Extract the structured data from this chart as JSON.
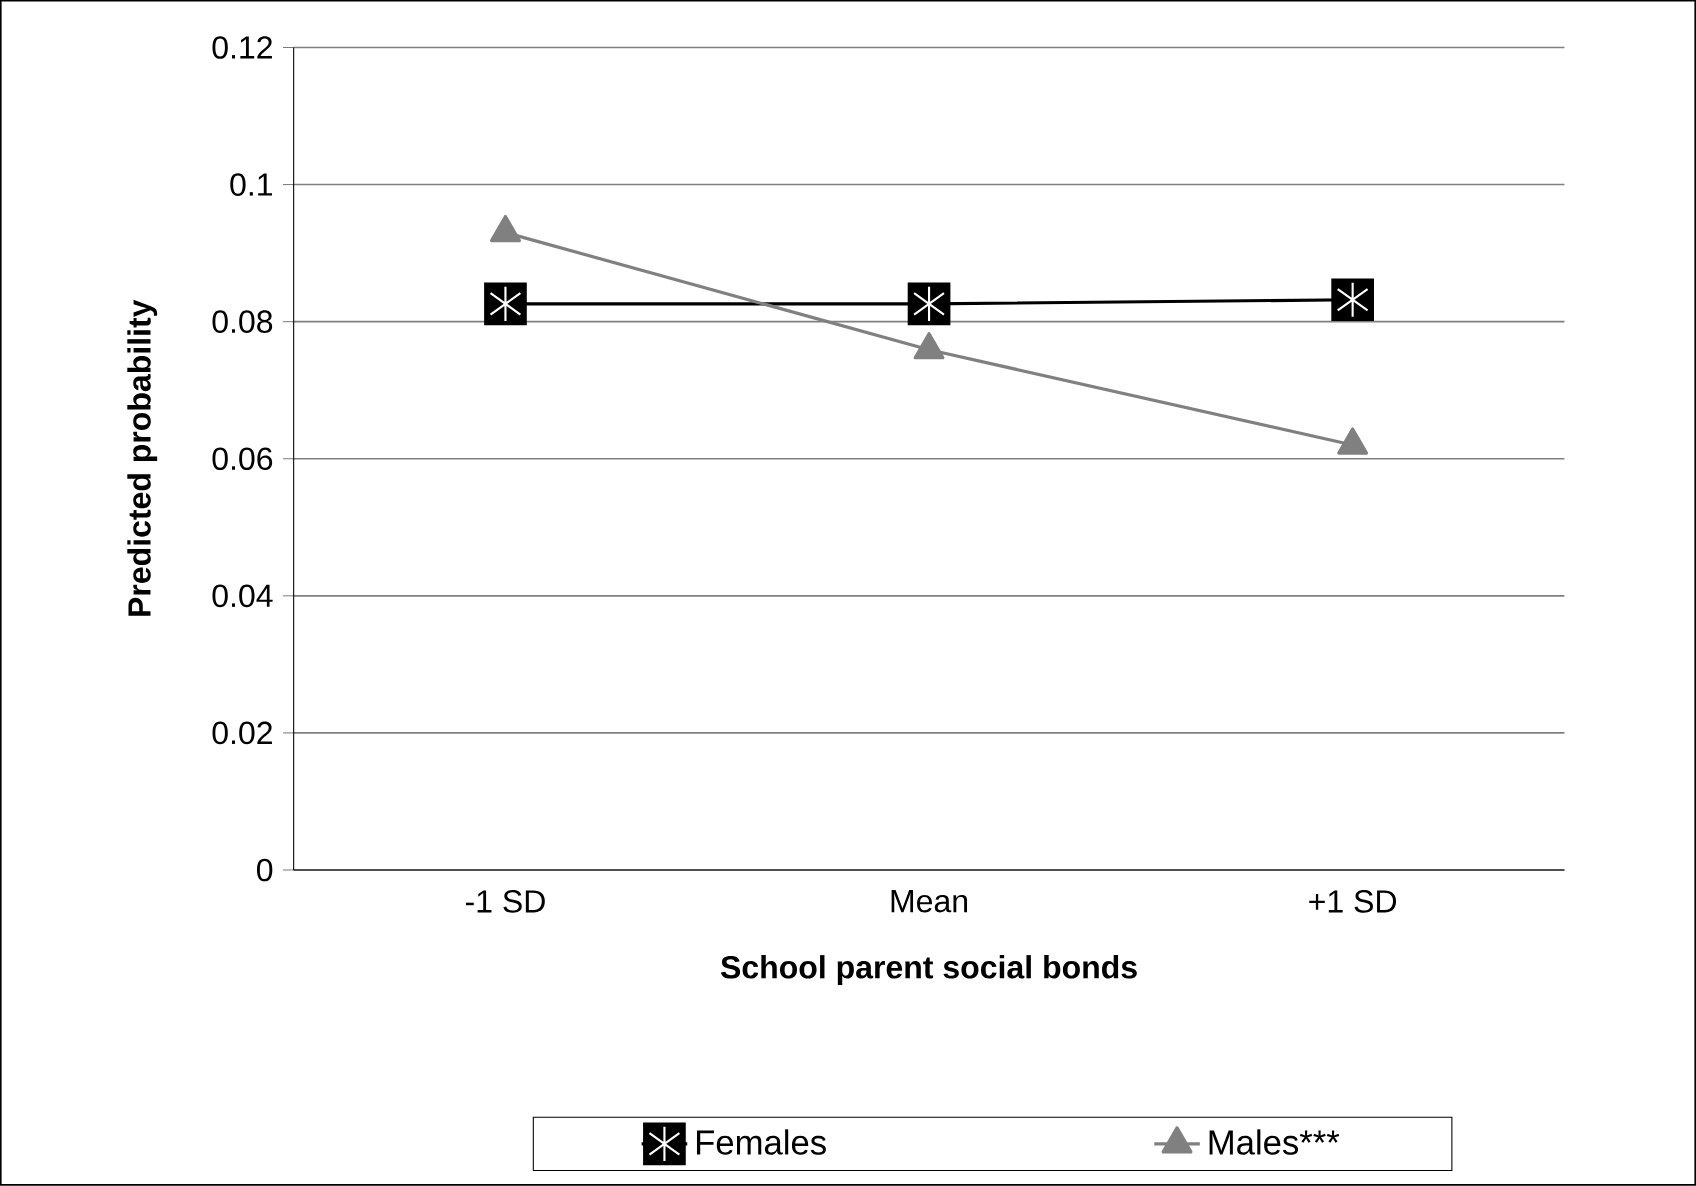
{
  "chart_data": {
    "type": "line",
    "xlabel": "School parent social bonds",
    "ylabel": "Predicted probability",
    "categories": [
      "-1 SD",
      "Mean",
      "+1 SD"
    ],
    "series": [
      {
        "name": "Females",
        "color": "#000000",
        "marker": "square",
        "values": [
          0.0826,
          0.0826,
          0.0832
        ]
      },
      {
        "name": "Males***",
        "color": "#808080",
        "marker": "triangle",
        "values": [
          0.093,
          0.0759,
          0.062
        ]
      }
    ],
    "ylim": [
      0,
      0.12
    ],
    "yticks": [
      0,
      0.02,
      0.04,
      0.06,
      0.08,
      0.1,
      0.12
    ],
    "grid": "y",
    "legend": "bottom"
  }
}
